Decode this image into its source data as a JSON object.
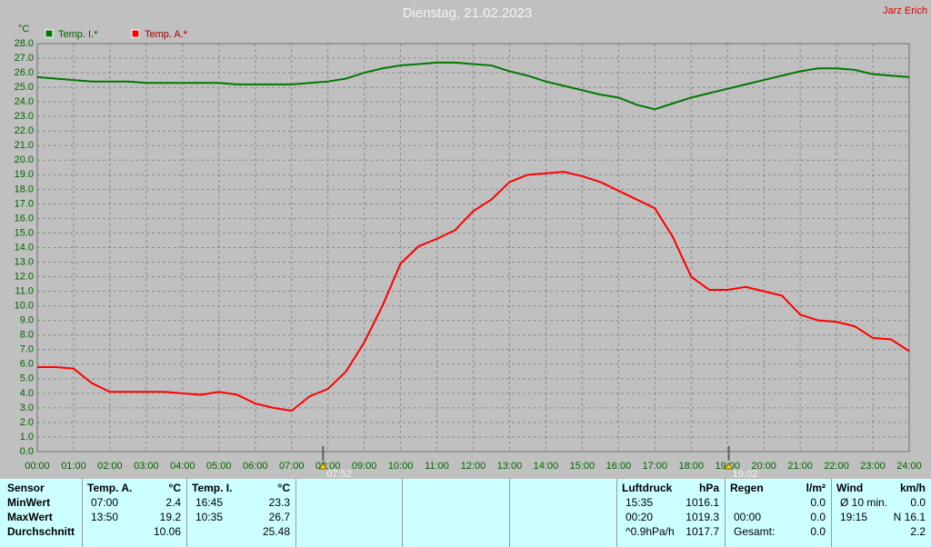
{
  "chart_data": {
    "type": "line",
    "title": "Dienstag, 21.02.2023",
    "author": "Jarz Erich",
    "y_label": "°C",
    "x": [
      0,
      0.5,
      1,
      1.5,
      2,
      2.5,
      3,
      3.5,
      4,
      4.5,
      5,
      5.5,
      6,
      6.5,
      7,
      7.5,
      8,
      8.5,
      9,
      9.5,
      10,
      10.5,
      11,
      11.5,
      12,
      12.5,
      13,
      13.5,
      14,
      14.5,
      15,
      15.5,
      16,
      16.5,
      17,
      17.5,
      18,
      18.5,
      19,
      19.5,
      20,
      20.5,
      21,
      21.5,
      22,
      22.5,
      23,
      23.5,
      24
    ],
    "series": [
      {
        "name": "Temp. I.*",
        "color": "#007800",
        "values": [
          25.7,
          25.6,
          25.5,
          25.4,
          25.4,
          25.4,
          25.3,
          25.3,
          25.3,
          25.3,
          25.3,
          25.2,
          25.2,
          25.2,
          25.2,
          25.3,
          25.4,
          25.6,
          26.0,
          26.3,
          26.5,
          26.6,
          26.7,
          26.7,
          26.6,
          26.5,
          26.1,
          25.8,
          25.4,
          25.1,
          24.8,
          24.5,
          24.3,
          23.8,
          23.5,
          23.9,
          24.3,
          24.6,
          24.9,
          25.2,
          25.5,
          25.8,
          26.1,
          26.3,
          26.3,
          26.2,
          25.9,
          25.8,
          25.7
        ]
      },
      {
        "name": "Temp. A.*",
        "color": "#ff0000",
        "values": [
          5.8,
          5.8,
          5.7,
          4.7,
          4.1,
          4.1,
          4.1,
          4.1,
          4.0,
          3.9,
          4.1,
          3.9,
          3.3,
          3.0,
          2.8,
          3.8,
          4.3,
          5.5,
          7.5,
          10.0,
          12.9,
          14.1,
          14.6,
          15.2,
          16.5,
          17.3,
          18.5,
          19.0,
          19.1,
          19.2,
          18.9,
          18.5,
          17.9,
          17.3,
          16.7,
          14.7,
          12.0,
          11.1,
          11.1,
          11.3,
          11.0,
          10.7,
          9.4,
          9.0,
          8.9,
          8.6,
          7.8,
          7.7,
          6.9
        ]
      }
    ],
    "xlim": [
      0,
      24
    ],
    "ylim": [
      0,
      28
    ],
    "xticks": [
      {
        "value": 0,
        "label": "00:00"
      },
      {
        "value": 1,
        "label": "01:00"
      },
      {
        "value": 2,
        "label": "02:00"
      },
      {
        "value": 3,
        "label": "03:00"
      },
      {
        "value": 4,
        "label": "04:00"
      },
      {
        "value": 5,
        "label": "05:00"
      },
      {
        "value": 6,
        "label": "06:00"
      },
      {
        "value": 7,
        "label": "07:00"
      },
      {
        "value": 8,
        "label": "08:00"
      },
      {
        "value": 9,
        "label": "09:00"
      },
      {
        "value": 10,
        "label": "10:00"
      },
      {
        "value": 11,
        "label": "11:00"
      },
      {
        "value": 12,
        "label": "12:00"
      },
      {
        "value": 13,
        "label": "13:00"
      },
      {
        "value": 14,
        "label": "14:00"
      },
      {
        "value": 15,
        "label": "15:00"
      },
      {
        "value": 16,
        "label": "16:00"
      },
      {
        "value": 17,
        "label": "17:00"
      },
      {
        "value": 18,
        "label": "18:00"
      },
      {
        "value": 19,
        "label": "19:00"
      },
      {
        "value": 20,
        "label": "20:00"
      },
      {
        "value": 21,
        "label": "21:00"
      },
      {
        "value": 22,
        "label": "22:00"
      },
      {
        "value": 23,
        "label": "23:00"
      },
      {
        "value": 24,
        "label": "24:00"
      }
    ],
    "yticks": [
      {
        "value": 0,
        "label": "0.0"
      },
      {
        "value": 1,
        "label": "1.0"
      },
      {
        "value": 2,
        "label": "2.0"
      },
      {
        "value": 3,
        "label": "3.0"
      },
      {
        "value": 4,
        "label": "4.0"
      },
      {
        "value": 5,
        "label": "5.0"
      },
      {
        "value": 6,
        "label": "6.0"
      },
      {
        "value": 7,
        "label": "7.0"
      },
      {
        "value": 8,
        "label": "8.0"
      },
      {
        "value": 9,
        "label": "9.0"
      },
      {
        "value": 10,
        "label": "10.0"
      },
      {
        "value": 11,
        "label": "11.0"
      },
      {
        "value": 12,
        "label": "12.0"
      },
      {
        "value": 13,
        "label": "13.0"
      },
      {
        "value": 14,
        "label": "14.0"
      },
      {
        "value": 15,
        "label": "15.0"
      },
      {
        "value": 16,
        "label": "16.0"
      },
      {
        "value": 17,
        "label": "17.0"
      },
      {
        "value": 18,
        "label": "18.0"
      },
      {
        "value": 19,
        "label": "19.0"
      },
      {
        "value": 20,
        "label": "20.0"
      },
      {
        "value": 21,
        "label": "21.0"
      },
      {
        "value": 22,
        "label": "22.0"
      },
      {
        "value": 23,
        "label": "23.0"
      },
      {
        "value": 24,
        "label": "24.0"
      },
      {
        "value": 25,
        "label": "25.0"
      },
      {
        "value": 26,
        "label": "26.0"
      },
      {
        "value": 27,
        "label": "27.0"
      },
      {
        "value": 28,
        "label": "28.0"
      }
    ],
    "grid": true,
    "markers": [
      {
        "x": 7.8667,
        "label": "07:52"
      },
      {
        "x": 19.0333,
        "label": "19:02"
      }
    ]
  },
  "table": {
    "row_labels": [
      "Sensor",
      "MinWert",
      "MaxWert",
      "Durchschnitt"
    ],
    "columns": [
      {
        "header": "Temp. A.",
        "unit": "°C",
        "min": [
          "07:00",
          "2.4"
        ],
        "max": [
          "13:50",
          "19.2"
        ],
        "avg": [
          "10.06"
        ]
      },
      {
        "header": "Temp. I.",
        "unit": "°C",
        "min": [
          "16:45",
          "23.3"
        ],
        "max": [
          "10:35",
          "26.7"
        ],
        "avg": [
          "25.48"
        ]
      },
      {
        "header": "Luftdruck",
        "unit": "hPa",
        "min": [
          "15:35",
          "1016.1"
        ],
        "max": [
          "00:20",
          "1019.3"
        ],
        "avg": [
          "^0.9hPa/h",
          "1017.7"
        ]
      },
      {
        "header": "Regen",
        "unit": "l/m²",
        "min": [
          "0.0"
        ],
        "max": [
          "00:00",
          "0.0"
        ],
        "avg": [
          "Gesamt:",
          "0.0"
        ]
      },
      {
        "header": "Wind",
        "unit": "km/h",
        "min": [
          "Ø 10 min.",
          "0.0"
        ],
        "max": [
          "19:15",
          "N 16.1"
        ],
        "avg": [
          "2.2"
        ]
      }
    ]
  }
}
